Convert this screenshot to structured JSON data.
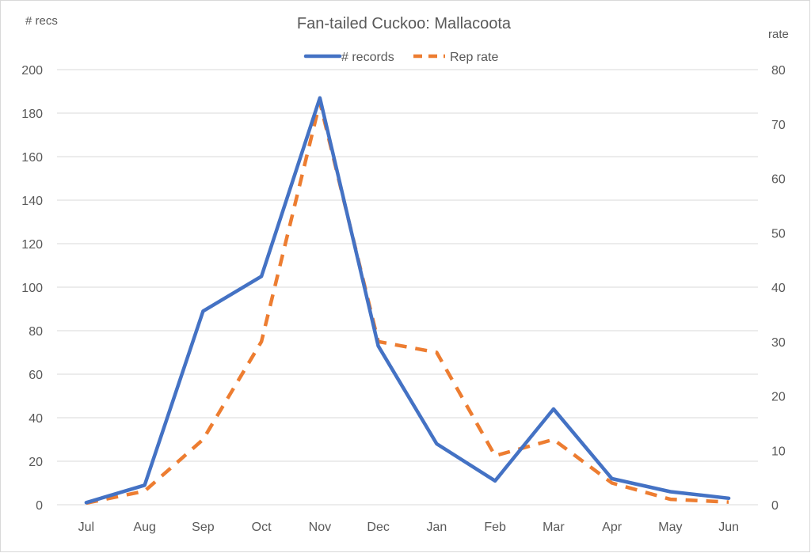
{
  "chart_data": {
    "type": "line",
    "title": "Fan-tailed Cuckoo: Mallacoota",
    "ylabel_left": "# recs",
    "ylabel_right": "rate",
    "categories": [
      "Jul",
      "Aug",
      "Sep",
      "Oct",
      "Nov",
      "Dec",
      "Jan",
      "Feb",
      "Mar",
      "Apr",
      "May",
      "Jun"
    ],
    "y_left": {
      "min": 0,
      "max": 200,
      "step": 20,
      "ticks": [
        0,
        20,
        40,
        60,
        80,
        100,
        120,
        140,
        160,
        180,
        200
      ]
    },
    "y_right": {
      "min": 0,
      "max": 80,
      "step": 10,
      "ticks": [
        0,
        10,
        20,
        30,
        40,
        50,
        60,
        70,
        80
      ]
    },
    "grid": true,
    "legend_position": "top",
    "series": [
      {
        "name": "# records",
        "axis": "left",
        "style": "solid",
        "color": "#4472c4",
        "values": [
          1,
          9,
          89,
          105,
          187,
          73,
          28,
          11,
          44,
          12,
          6,
          3
        ]
      },
      {
        "name": "Rep rate",
        "axis": "right",
        "style": "dashed",
        "color": "#ed7d31",
        "values": [
          0.3,
          2.5,
          12,
          30,
          74,
          30,
          28,
          9,
          12,
          4,
          1,
          0.5
        ]
      }
    ]
  }
}
